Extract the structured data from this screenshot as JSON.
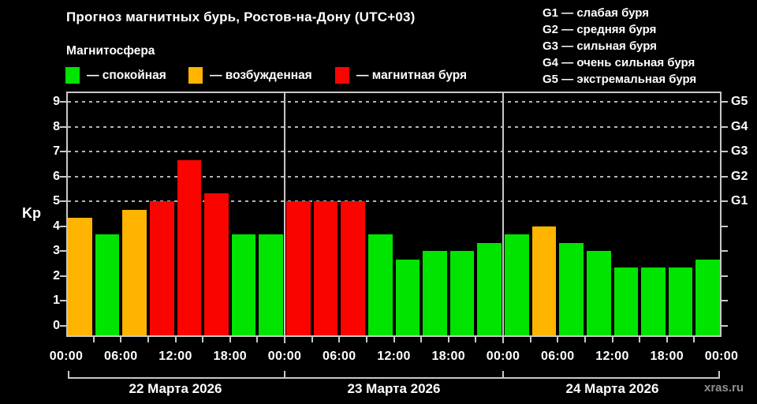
{
  "title": "Прогноз магнитных бурь, Ростов-на-Дону (UTC+03)",
  "subtitle": "Магнитосфера",
  "watermark": "xras.ru",
  "colors": {
    "background": "#000000",
    "text": "#ffffff",
    "axis": "#c8c8c8",
    "grid": "#b4b4b4",
    "watermark": "#8f8f8f"
  },
  "legend": [
    {
      "key": "calm",
      "label": "— спокойная",
      "color": "#00e400"
    },
    {
      "key": "excited",
      "label": "— возбужденная",
      "color": "#ffb400"
    },
    {
      "key": "storm",
      "label": "— магнитная буря",
      "color": "#fa0400"
    }
  ],
  "g_legend": [
    "G1 — слабая буря",
    "G2 — средняя буря",
    "G3 — сильная буря",
    "G4 — очень сильная буря",
    "G5 — экстремальная буря"
  ],
  "chart_data": {
    "type": "bar",
    "title": "Прогноз магнитных бурь, Ростов-на-Дону (UTC+03)",
    "ylabel": "Kp",
    "ylim": [
      0,
      9
    ],
    "y_ticks": [
      0,
      1,
      2,
      3,
      4,
      5,
      6,
      7,
      8,
      9
    ],
    "gridlines": [
      5,
      6,
      7,
      8,
      9
    ],
    "right_axis_labels": [
      {
        "value": 5,
        "label": "G1"
      },
      {
        "value": 6,
        "label": "G2"
      },
      {
        "value": 7,
        "label": "G3"
      },
      {
        "value": 8,
        "label": "G4"
      },
      {
        "value": 9,
        "label": "G5"
      }
    ],
    "x_tick_labels": [
      "00:00",
      "06:00",
      "12:00",
      "18:00",
      "00:00",
      "06:00",
      "12:00",
      "18:00",
      "00:00",
      "06:00",
      "12:00",
      "18:00",
      "00:00"
    ],
    "bar_interval_hours": 3,
    "legend_position": "top",
    "grid": "dashed horizontal at G levels only",
    "days": [
      {
        "label": "22 Марта 2026",
        "values": [
          4.33,
          3.67,
          4.67,
          5.0,
          6.67,
          5.33,
          3.67,
          3.67
        ],
        "status": [
          "excited",
          "calm",
          "excited",
          "storm",
          "storm",
          "storm",
          "calm",
          "calm"
        ]
      },
      {
        "label": "23 Марта 2026",
        "values": [
          5.0,
          5.0,
          5.0,
          3.67,
          2.67,
          3.0,
          3.0,
          3.33
        ],
        "status": [
          "storm",
          "storm",
          "storm",
          "calm",
          "calm",
          "calm",
          "calm",
          "calm"
        ]
      },
      {
        "label": "24 Марта 2026",
        "values": [
          3.67,
          4.0,
          3.33,
          3.0,
          2.33,
          2.33,
          2.33,
          2.67
        ],
        "status": [
          "calm",
          "excited",
          "calm",
          "calm",
          "calm",
          "calm",
          "calm",
          "calm"
        ]
      }
    ],
    "status_colors": {
      "calm": "#00e400",
      "excited": "#ffb400",
      "storm": "#fa0400"
    }
  }
}
